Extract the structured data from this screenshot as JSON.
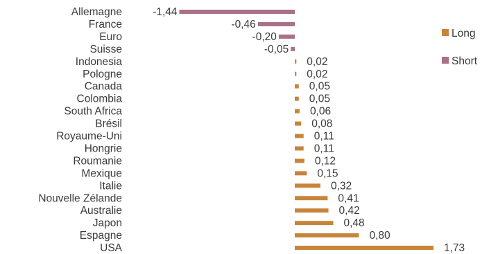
{
  "chart_data": {
    "type": "bar",
    "orientation": "horizontal",
    "title": "",
    "xlabel": "",
    "ylabel": "",
    "categories": [
      "Allemagne",
      "France",
      "Euro",
      "Suisse",
      "Indonesia",
      "Pologne",
      "Canada",
      "Colombia",
      "South Africa",
      "Brésil",
      "Royaume-Uni",
      "Hongrie",
      "Roumanie",
      "Mexique",
      "Italie",
      "Nouvelle Zélande",
      "Australie",
      "Japon",
      "Espagne",
      "USA"
    ],
    "values": [
      -1.44,
      -0.46,
      -0.2,
      -0.05,
      0.02,
      0.02,
      0.05,
      0.05,
      0.06,
      0.08,
      0.11,
      0.11,
      0.12,
      0.15,
      0.32,
      0.41,
      0.42,
      0.48,
      0.8,
      1.73
    ],
    "value_labels": [
      "-1,44",
      "-0,46",
      "-0,20",
      "-0,05",
      "0,02",
      "0,02",
      "0,05",
      "0,05",
      "0,06",
      "0,08",
      "0,11",
      "0,11",
      "0,12",
      "0,15",
      "0,32",
      "0,41",
      "0,42",
      "0,48",
      "0,80",
      "1,73"
    ],
    "series": [
      {
        "name": "Long",
        "color": "#c8843a"
      },
      {
        "name": "Short",
        "color": "#a97088"
      }
    ],
    "legend_position": "right",
    "grid": false,
    "xlim": [
      -1.44,
      1.73
    ]
  }
}
